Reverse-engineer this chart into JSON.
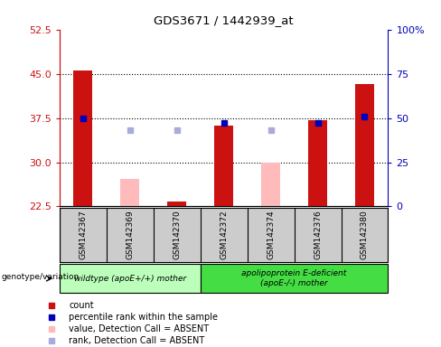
{
  "title": "GDS3671 / 1442939_at",
  "samples": [
    "GSM142367",
    "GSM142369",
    "GSM142370",
    "GSM142372",
    "GSM142374",
    "GSM142376",
    "GSM142380"
  ],
  "count_values": [
    45.5,
    null,
    23.3,
    36.2,
    null,
    37.2,
    43.3
  ],
  "count_absent": [
    null,
    27.2,
    null,
    null,
    30.0,
    null,
    null
  ],
  "rank_values": [
    50,
    null,
    null,
    47,
    null,
    47,
    51
  ],
  "rank_absent": [
    null,
    43,
    43,
    null,
    43,
    null,
    null
  ],
  "ylim_left": [
    22.5,
    52.5
  ],
  "ylim_right": [
    0,
    100
  ],
  "yticks_left": [
    22.5,
    30.0,
    37.5,
    45.0,
    52.5
  ],
  "yticks_right": [
    0,
    25,
    50,
    75,
    100
  ],
  "bar_color": "#CC1111",
  "bar_absent_color": "#FFBBBB",
  "rank_color": "#0000BB",
  "rank_absent_color": "#AAAADD",
  "group1_label": "wildtype (apoE+/+) mother",
  "group2_label": "apolipoprotein E-deficient\n(apoE-/-) mother",
  "group1_color": "#BBFFBB",
  "group2_color": "#44DD44",
  "genotype_label": "genotype/variation",
  "bg_color": "#CCCCCC",
  "bar_width": 0.4
}
